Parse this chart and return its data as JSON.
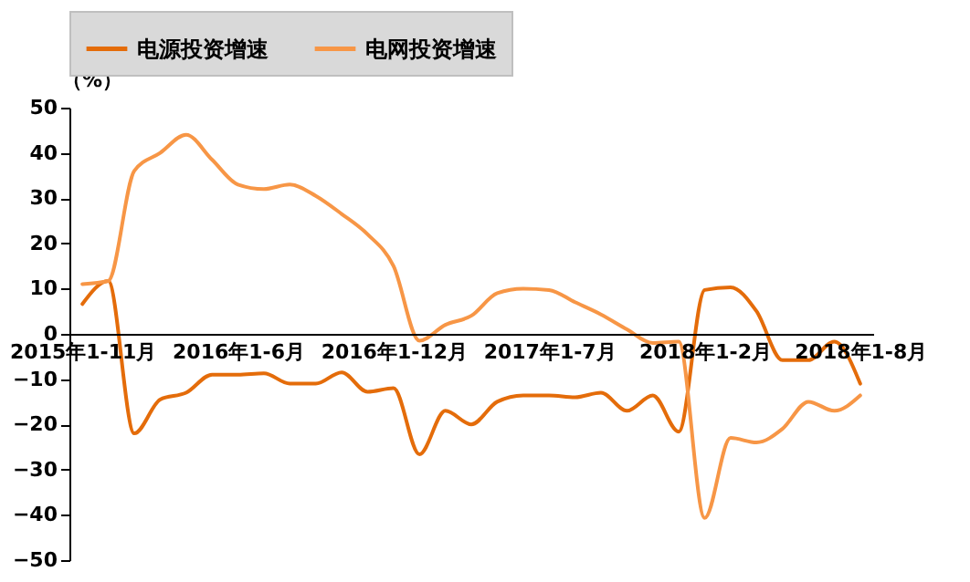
{
  "chart_data": {
    "type": "line",
    "ylabel": "（%）",
    "categories": [
      "2015年1-11月",
      null,
      null,
      null,
      null,
      null,
      "2016年1-6月",
      null,
      null,
      null,
      null,
      null,
      "2016年1-12月",
      null,
      null,
      null,
      null,
      null,
      "2017年1-7月",
      null,
      null,
      null,
      null,
      null,
      "2018年1-2月",
      null,
      null,
      null,
      null,
      null,
      "2018年1-8月"
    ],
    "series": [
      {
        "name": "电源投资增速",
        "color": "#e46c0a",
        "values": [
          6.6,
          11.7,
          -22,
          -14.5,
          -13,
          -9,
          -9,
          -8.7,
          -11,
          -11,
          -8.5,
          -12.8,
          -12,
          -26.6,
          -17,
          -20,
          -15,
          -13.6,
          -13.6,
          -14,
          -13,
          -17,
          -13.6,
          -21.6,
          9.7,
          10.3,
          5,
          -5.8,
          -5.8,
          -1.7,
          -11
        ]
      },
      {
        "name": "电网投资增速",
        "color": "#f79646",
        "values": [
          11,
          11.7,
          36,
          40,
          44,
          38.5,
          33,
          32,
          33,
          30.5,
          26.5,
          22,
          15,
          -1.5,
          2,
          4,
          9,
          10,
          9.7,
          7,
          4.3,
          1,
          -2,
          -1.7,
          -40.7,
          -23,
          -24,
          -21,
          -15,
          -17,
          -13.6
        ]
      }
    ],
    "ylim": [
      -50,
      50
    ],
    "yticks": [
      -50,
      -40,
      -30,
      -20,
      -10,
      0,
      10,
      20,
      30,
      40,
      50
    ],
    "grid": false,
    "legend": "top",
    "marker": "none",
    "line_style": "solid"
  }
}
